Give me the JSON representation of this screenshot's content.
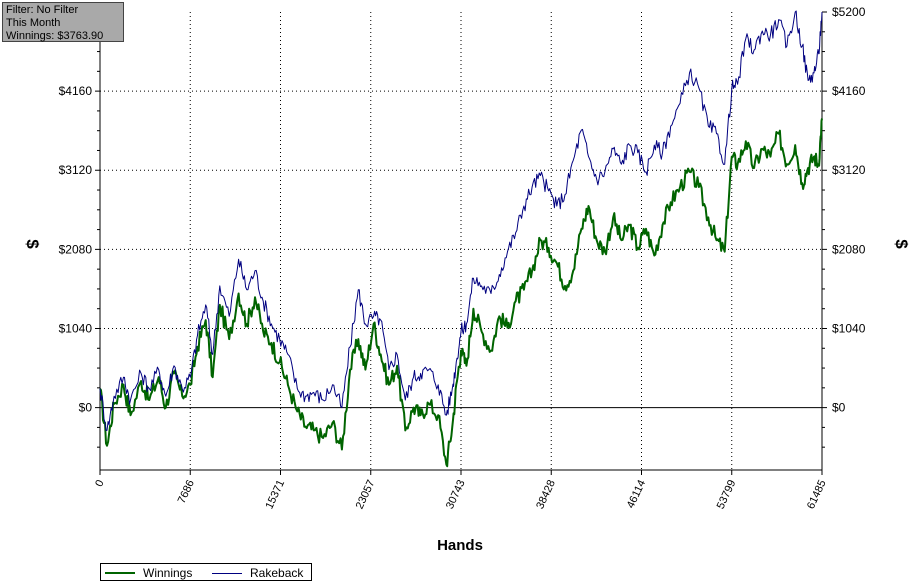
{
  "info": {
    "filter": "Filter: No Filter",
    "period": "This Month",
    "winnings": "Winnings: $3763.90"
  },
  "legend": {
    "winnings_label": "Winnings",
    "rakeback_label": "Rakeback"
  },
  "colors": {
    "winnings": "#006400",
    "rakeback": "#000080",
    "zero_line": "#000000",
    "grid": "#000000"
  },
  "chart_data": {
    "type": "line",
    "xlabel": "Hands",
    "ylabel": "$",
    "xlim": [
      0,
      61485
    ],
    "ylim": [
      -820,
      5200
    ],
    "x_ticks": [
      0,
      7686,
      15371,
      23057,
      30743,
      38428,
      46114,
      53799,
      61485
    ],
    "y_ticks": [
      {
        "value": 0,
        "label": "$0"
      },
      {
        "value": 1040,
        "label": "$1040"
      },
      {
        "value": 2080,
        "label": "$2080"
      },
      {
        "value": 3120,
        "label": "$3120"
      },
      {
        "value": 4160,
        "label": "$4160"
      },
      {
        "value": 5200,
        "label": "$5200"
      }
    ],
    "grid": true,
    "legend_position": "bottom-left",
    "series": [
      {
        "name": "Winnings",
        "color": "#006400",
        "x": [
          0,
          600,
          1200,
          2000,
          2600,
          3500,
          4200,
          5000,
          5600,
          6300,
          7000,
          7700,
          8300,
          9000,
          9600,
          10200,
          11000,
          11800,
          12500,
          13200,
          13900,
          14600,
          15300,
          16000,
          16800,
          17500,
          18200,
          19000,
          19800,
          20600,
          21300,
          22000,
          22600,
          23300,
          23900,
          24600,
          25300,
          26000,
          26700,
          27300,
          28000,
          28800,
          29500,
          30000,
          30400,
          30743,
          31200,
          31800,
          32500,
          33300,
          34000,
          34700,
          35400,
          36100,
          36800,
          37500,
          38200,
          38900,
          39600,
          40300,
          41000,
          41600,
          42300,
          43000,
          43700,
          44400,
          45100,
          45800,
          46500,
          47200,
          47900,
          48600,
          49400,
          50200,
          51000,
          51800,
          52500,
          53200,
          53800,
          54300,
          55000,
          55700,
          56400,
          57100,
          57800,
          58500,
          59200,
          59800,
          60300,
          60800,
          61200,
          61485
        ],
        "y": [
          250,
          -500,
          50,
          300,
          -100,
          350,
          100,
          400,
          0,
          450,
          150,
          300,
          800,
          1150,
          400,
          1350,
          900,
          1500,
          1100,
          1450,
          1000,
          850,
          600,
          300,
          -50,
          -250,
          -300,
          -400,
          -200,
          -550,
          500,
          900,
          500,
          1100,
          700,
          300,
          550,
          -300,
          0,
          -100,
          50,
          -100,
          -750,
          -250,
          350,
          750,
          550,
          1300,
          1000,
          750,
          1200,
          1050,
          1400,
          1550,
          1800,
          2200,
          2100,
          1900,
          1600,
          1800,
          2350,
          2650,
          2200,
          2050,
          2500,
          2200,
          2400,
          2100,
          2350,
          2000,
          2400,
          2700,
          2900,
          3100,
          2900,
          2500,
          2200,
          2050,
          3300,
          3200,
          3500,
          3150,
          3400,
          3300,
          3600,
          3200,
          3450,
          2950,
          3150,
          3300,
          3200,
          3800
        ]
      },
      {
        "name": "Rakeback",
        "color": "#000080",
        "x": [
          0,
          600,
          1200,
          2000,
          2600,
          3500,
          4200,
          5000,
          5600,
          6300,
          7000,
          7700,
          8300,
          9000,
          9600,
          10200,
          11000,
          11800,
          12500,
          13200,
          13900,
          14600,
          15300,
          16000,
          16800,
          17500,
          18200,
          19000,
          19800,
          20600,
          21300,
          22000,
          22600,
          23300,
          23900,
          24600,
          25300,
          26000,
          26700,
          27300,
          28000,
          28800,
          29500,
          30000,
          30400,
          30743,
          31200,
          31800,
          32500,
          33300,
          34000,
          34700,
          35400,
          36100,
          36800,
          37500,
          38200,
          38900,
          39600,
          40300,
          41000,
          41600,
          42300,
          43000,
          43700,
          44400,
          45100,
          45800,
          46500,
          47200,
          47900,
          48600,
          49400,
          50200,
          51000,
          51800,
          52500,
          53200,
          53800,
          54300,
          55000,
          55700,
          56400,
          57100,
          57800,
          58500,
          59200,
          59800,
          60300,
          60800,
          61200,
          61485
        ],
        "y": [
          250,
          -300,
          150,
          400,
          100,
          450,
          250,
          500,
          150,
          550,
          250,
          400,
          950,
          1350,
          700,
          1600,
          1200,
          1950,
          1550,
          1800,
          1400,
          1100,
          900,
          700,
          250,
          150,
          200,
          100,
          300,
          0,
          800,
          1550,
          1100,
          1200,
          1150,
          500,
          700,
          100,
          400,
          450,
          500,
          300,
          -100,
          250,
          650,
          1000,
          1100,
          1700,
          1600,
          1500,
          1750,
          2050,
          2300,
          2650,
          2900,
          3050,
          2850,
          2650,
          2800,
          3250,
          3650,
          3300,
          3000,
          3100,
          3400,
          3200,
          3450,
          3350,
          3100,
          3450,
          3350,
          3700,
          4000,
          4400,
          4200,
          3700,
          3600,
          3200,
          4200,
          4250,
          4850,
          4700,
          4950,
          4900,
          5100,
          4750,
          5200,
          4750,
          4300,
          4400,
          4650,
          5200
        ]
      }
    ]
  }
}
